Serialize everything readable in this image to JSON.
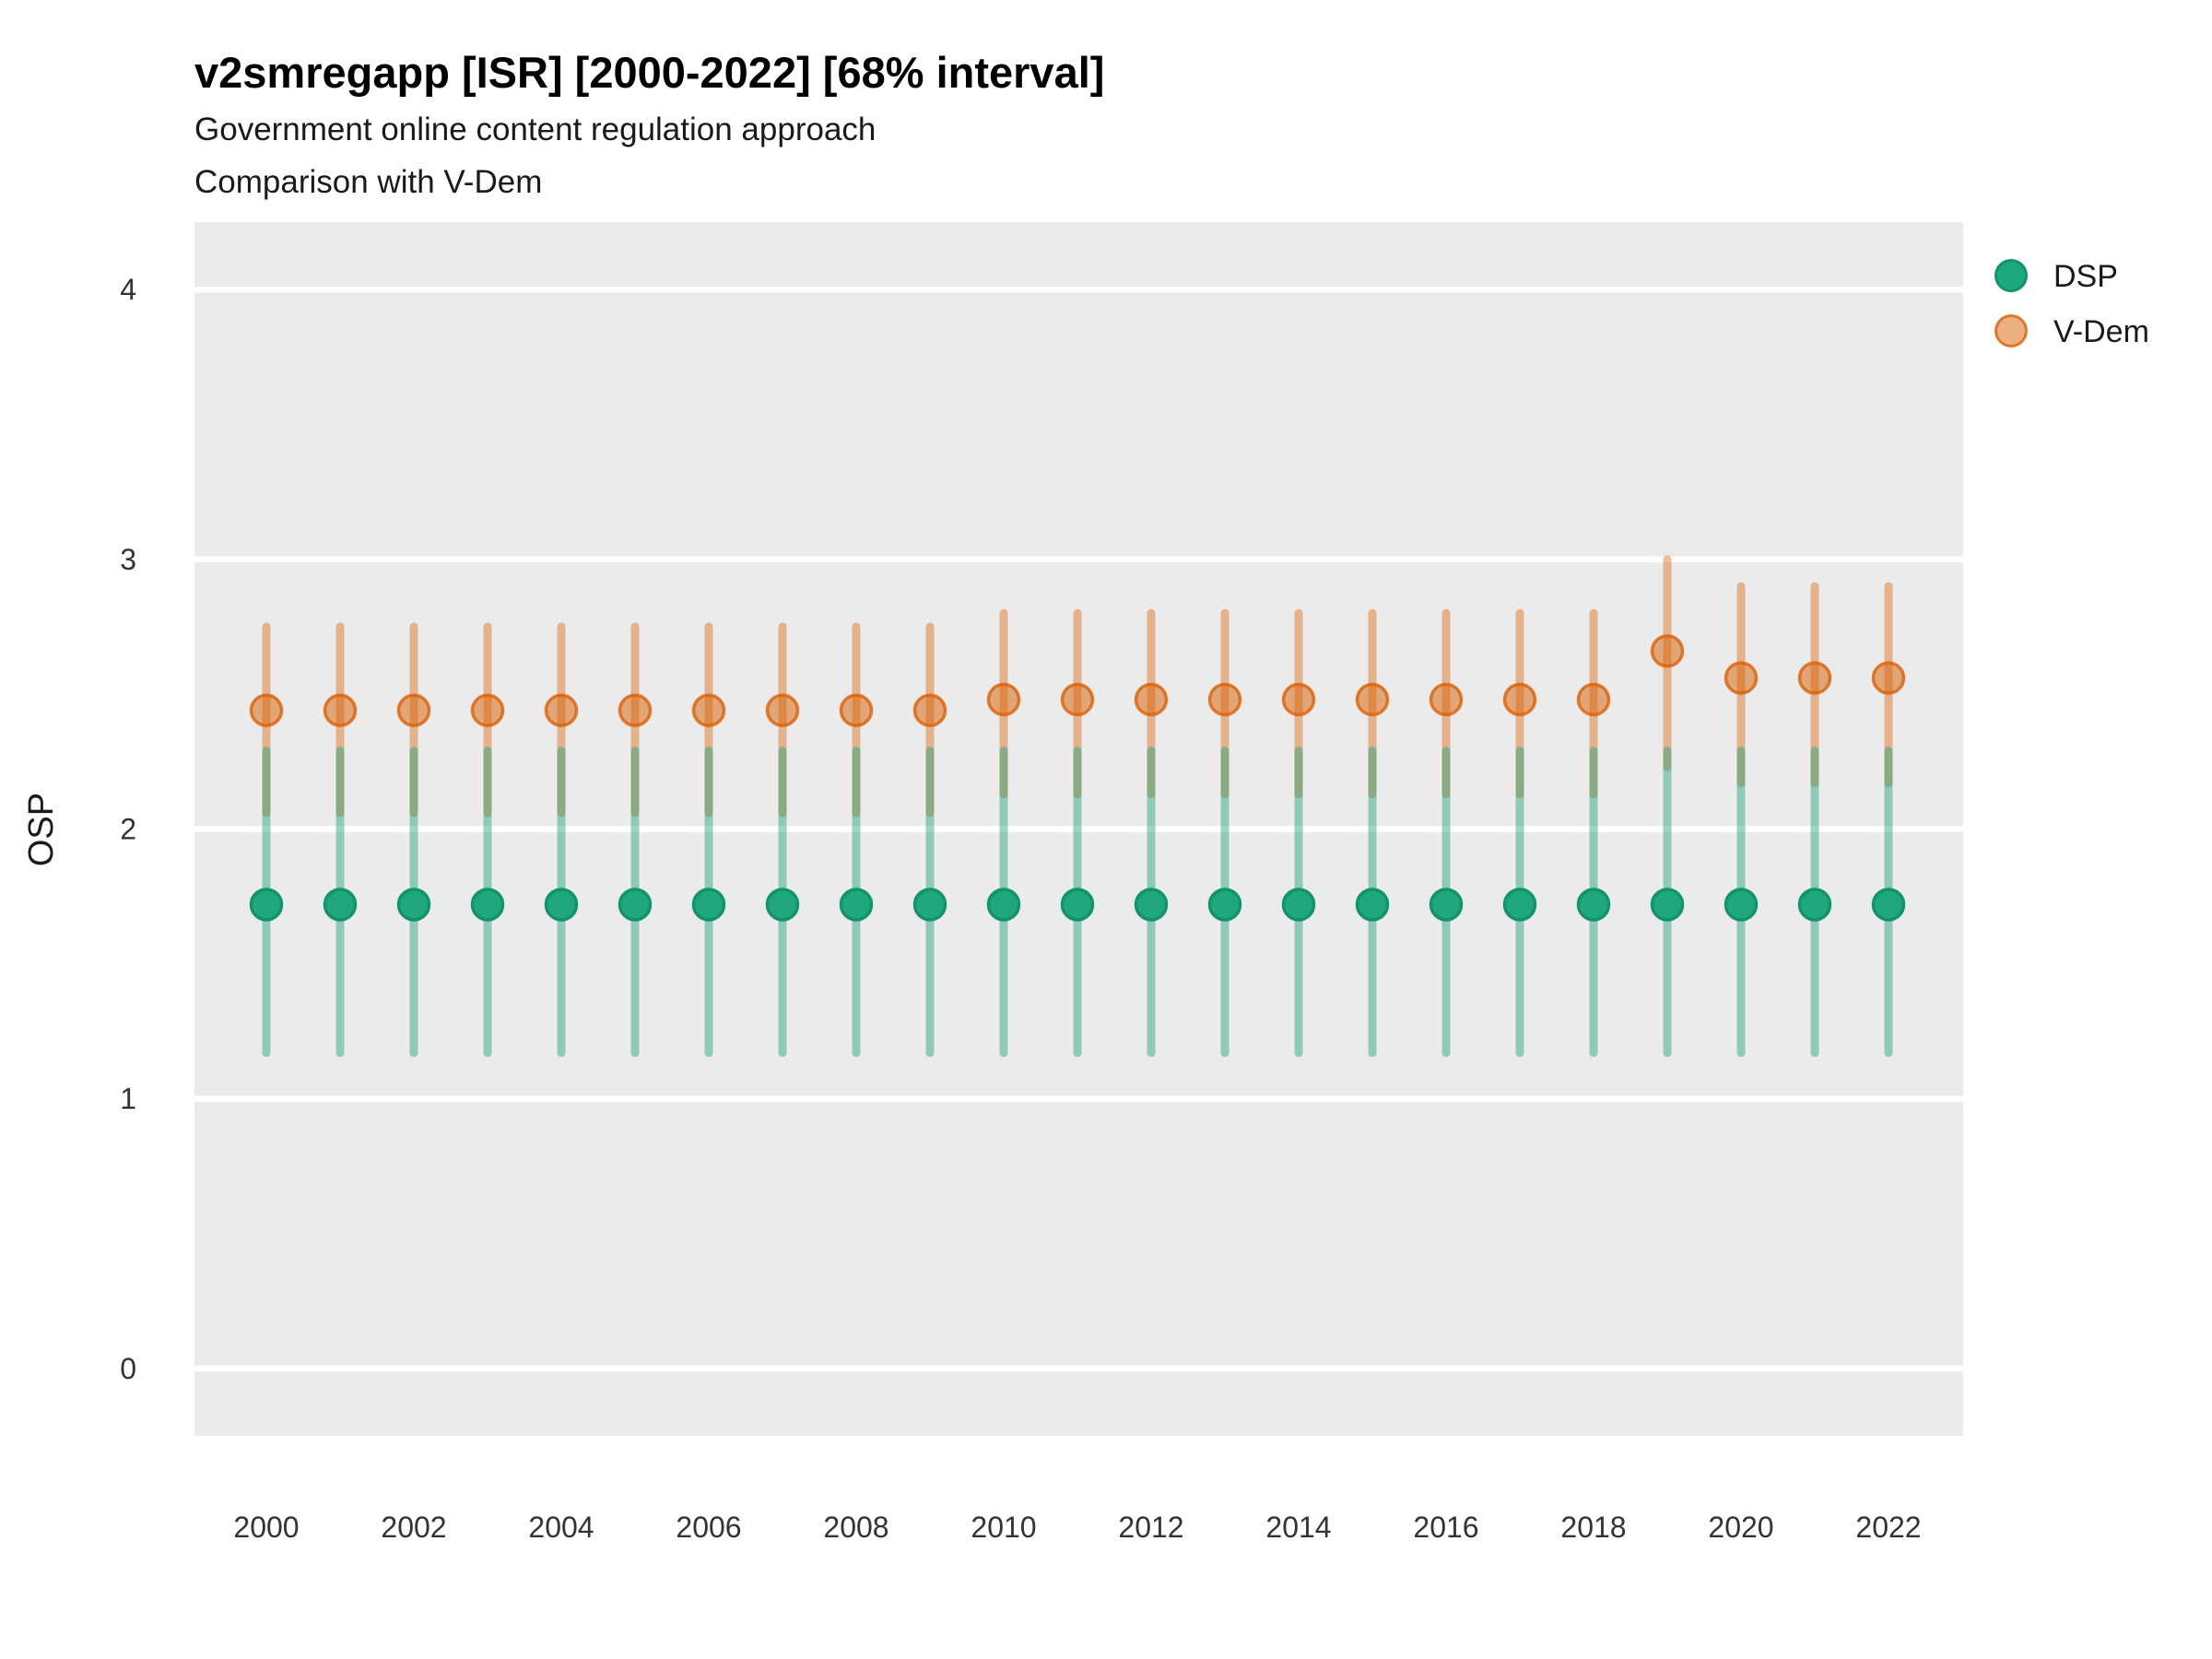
{
  "header": {
    "title": "v2smregapp [ISR] [2000-2022] [68% interval]",
    "subtitle1": "Government online content regulation approach",
    "subtitle2": "Comparison with V-Dem"
  },
  "y_axis": {
    "label": "OSP"
  },
  "legend": {
    "items": [
      {
        "label": "DSP"
      },
      {
        "label": "V-Dem"
      }
    ]
  },
  "colors": {
    "panel_background": "#EBEBEB",
    "gridline": "#FFFFFF",
    "dsp_point_fill": "#1FA87D",
    "dsp_point_stroke": "#13936B",
    "dsp_interval": "rgba(20,160,115,0.44)",
    "vdem_point_fill": "rgba(217,95,2,0.5)",
    "vdem_point_stroke": "rgba(217,95,2,0.78)",
    "vdem_interval": "rgba(217,95,2,0.4)"
  },
  "chart_data": {
    "type": "pointrange",
    "title": "v2smregapp [ISR] [2000-2022] [68% interval]",
    "subtitle": "Government online content regulation approach / Comparison with V-Dem",
    "interval": "68%",
    "xlabel": "",
    "ylabel": "OSP",
    "ylim": [
      -0.25,
      4.25
    ],
    "y_ticks": [
      0,
      1,
      2,
      3,
      4
    ],
    "x_tick_years": [
      2000,
      2002,
      2004,
      2006,
      2008,
      2010,
      2012,
      2014,
      2016,
      2018,
      2020,
      2022
    ],
    "years": [
      2000,
      2001,
      2002,
      2003,
      2004,
      2005,
      2006,
      2007,
      2008,
      2009,
      2010,
      2011,
      2012,
      2013,
      2014,
      2015,
      2016,
      2017,
      2018,
      2019,
      2020,
      2021,
      2022
    ],
    "grid": "major-horizontal-only",
    "legend_position": "right-top",
    "series": [
      {
        "name": "V-Dem",
        "point_fill": "rgba(217,95,2,0.5)",
        "point_stroke": "rgba(217,95,2,0.78)",
        "line_color": "rgba(217,95,2,0.4)",
        "est": [
          2.44,
          2.44,
          2.44,
          2.44,
          2.44,
          2.44,
          2.44,
          2.44,
          2.44,
          2.44,
          2.48,
          2.48,
          2.48,
          2.48,
          2.48,
          2.48,
          2.48,
          2.48,
          2.48,
          2.66,
          2.56,
          2.56,
          2.56
        ],
        "lo": [
          2.06,
          2.06,
          2.06,
          2.06,
          2.06,
          2.06,
          2.06,
          2.06,
          2.06,
          2.06,
          2.13,
          2.13,
          2.13,
          2.13,
          2.13,
          2.13,
          2.13,
          2.13,
          2.13,
          2.23,
          2.17,
          2.17,
          2.17
        ],
        "hi": [
          2.75,
          2.75,
          2.75,
          2.75,
          2.75,
          2.75,
          2.75,
          2.75,
          2.75,
          2.75,
          2.8,
          2.8,
          2.8,
          2.8,
          2.8,
          2.8,
          2.8,
          2.8,
          2.8,
          3.0,
          2.9,
          2.9,
          2.9
        ]
      },
      {
        "name": "DSP",
        "point_fill": "#1FA87D",
        "point_stroke": "#13936B",
        "line_color": "rgba(20,160,115,0.44)",
        "est": [
          1.72,
          1.72,
          1.72,
          1.72,
          1.72,
          1.72,
          1.72,
          1.72,
          1.72,
          1.72,
          1.72,
          1.72,
          1.72,
          1.72,
          1.72,
          1.72,
          1.72,
          1.72,
          1.72,
          1.72,
          1.72,
          1.72,
          1.72
        ],
        "lo": [
          1.17,
          1.17,
          1.17,
          1.17,
          1.17,
          1.17,
          1.17,
          1.17,
          1.17,
          1.17,
          1.17,
          1.17,
          1.17,
          1.17,
          1.17,
          1.17,
          1.17,
          1.17,
          1.17,
          1.17,
          1.17,
          1.17,
          1.17
        ],
        "hi": [
          2.29,
          2.29,
          2.29,
          2.29,
          2.29,
          2.29,
          2.29,
          2.29,
          2.29,
          2.29,
          2.29,
          2.29,
          2.29,
          2.29,
          2.29,
          2.29,
          2.29,
          2.29,
          2.29,
          2.29,
          2.29,
          2.29,
          2.29
        ]
      }
    ]
  }
}
